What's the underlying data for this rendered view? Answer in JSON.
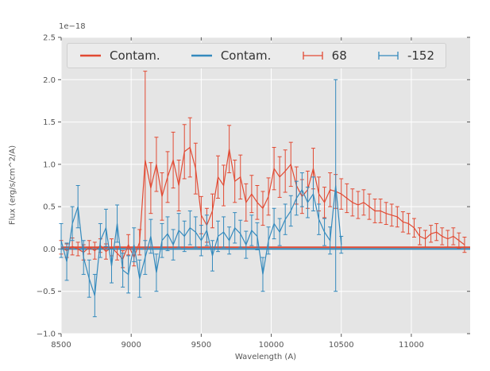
{
  "chart_data": {
    "type": "line",
    "title": "",
    "xlabel": "Wavelength (A)",
    "ylabel": "Flux (erg/s/cm^2/A)",
    "offset_text": "1e−18",
    "xlim": [
      8500,
      11420
    ],
    "ylim": [
      -1.0,
      2.5
    ],
    "grid": true,
    "legend_position": "upper-center-inside",
    "xticks": [
      8500,
      9000,
      9500,
      10000,
      10500,
      11000
    ],
    "xtick_labels": [
      "8500",
      "9000",
      "9500",
      "10000",
      "10500",
      "11000"
    ],
    "yticks": [
      -1.0,
      -0.5,
      0.0,
      0.5,
      1.0,
      1.5,
      2.0,
      2.5
    ],
    "ytick_labels": [
      "−1.0",
      "−0.5",
      "0.0",
      "0.5",
      "1.0",
      "1.5",
      "2.0",
      "2.5"
    ],
    "colors": {
      "plot_bg": "#E5E5E5",
      "grid": "#FFFFFF",
      "tick": "#555555",
      "tick_label": "#555555",
      "red": "#E24A33",
      "blue": "#348ABD"
    },
    "legend": [
      {
        "label": "Contam.",
        "glyph": "line",
        "color": "#E24A33"
      },
      {
        "label": "Contam.",
        "glyph": "line",
        "color": "#348ABD"
      },
      {
        "label": "68",
        "glyph": "errorbar",
        "color": "#E24A33"
      },
      {
        "label": "-152",
        "glyph": "errorbar",
        "color": "#348ABD"
      }
    ],
    "series": [
      {
        "name": "Contam.",
        "type": "line",
        "color": "#E24A33",
        "x": [
          8500,
          11420
        ],
        "y": [
          0.02,
          0.02
        ]
      },
      {
        "name": "Contam.",
        "type": "line",
        "color": "#348ABD",
        "x": [
          8500,
          11420
        ],
        "y": [
          0.0,
          0.0
        ]
      },
      {
        "name": "68",
        "type": "errorbar",
        "color": "#E24A33",
        "x_start": 8500,
        "x_step": 40,
        "y": [
          0.02,
          -0.02,
          0.03,
          0.0,
          -0.04,
          0.02,
          -0.02,
          0.04,
          -0.03,
          0.02,
          -0.05,
          -0.12,
          0.05,
          -0.1,
          0.08,
          1.05,
          0.72,
          1.0,
          0.62,
          0.85,
          1.05,
          0.75,
          1.15,
          1.2,
          0.95,
          0.4,
          0.28,
          0.45,
          0.85,
          0.75,
          1.18,
          0.8,
          0.85,
          0.55,
          0.65,
          0.55,
          0.48,
          0.62,
          0.95,
          0.85,
          0.92,
          1.0,
          0.75,
          0.62,
          0.7,
          0.95,
          0.65,
          0.55,
          0.7,
          0.68,
          0.65,
          0.6,
          0.55,
          0.52,
          0.55,
          0.5,
          0.45,
          0.45,
          0.42,
          0.4,
          0.38,
          0.32,
          0.3,
          0.25,
          0.15,
          0.12,
          0.18,
          0.2,
          0.15,
          0.12,
          0.15,
          0.1,
          0.05
        ],
        "yerr": [
          0.08,
          0.08,
          0.1,
          0.08,
          0.09,
          0.08,
          0.1,
          0.08,
          0.09,
          0.1,
          0.08,
          0.1,
          0.12,
          0.1,
          0.15,
          1.05,
          0.3,
          0.32,
          0.28,
          0.3,
          0.33,
          0.3,
          0.32,
          0.35,
          0.3,
          0.22,
          0.2,
          0.2,
          0.25,
          0.24,
          0.28,
          0.25,
          0.26,
          0.22,
          0.22,
          0.2,
          0.2,
          0.22,
          0.25,
          0.24,
          0.25,
          0.26,
          0.22,
          0.2,
          0.22,
          0.24,
          0.2,
          0.18,
          0.2,
          0.2,
          0.18,
          0.17,
          0.16,
          0.16,
          0.15,
          0.15,
          0.14,
          0.14,
          0.13,
          0.13,
          0.12,
          0.12,
          0.12,
          0.11,
          0.1,
          0.1,
          0.1,
          0.1,
          0.1,
          0.1,
          0.1,
          0.09,
          0.09
        ]
      },
      {
        "name": "-152",
        "type": "errorbar",
        "color": "#348ABD",
        "x_start": 8500,
        "x_step": 40,
        "y": [
          0.1,
          -0.15,
          0.3,
          0.5,
          -0.1,
          -0.35,
          -0.55,
          0.1,
          0.25,
          -0.2,
          0.3,
          -0.25,
          -0.3,
          0.05,
          -0.35,
          -0.1,
          0.15,
          -0.28,
          0.1,
          0.18,
          0.05,
          0.22,
          0.15,
          0.25,
          0.2,
          0.1,
          0.22,
          -0.08,
          0.15,
          0.2,
          0.1,
          0.25,
          0.18,
          0.05,
          0.22,
          0.15,
          -0.3,
          0.1,
          0.3,
          0.2,
          0.35,
          0.45,
          0.6,
          0.7,
          0.55,
          0.65,
          0.35,
          0.2,
          0.1,
          0.75,
          0.05
        ],
        "yerr": [
          0.2,
          0.22,
          0.2,
          0.25,
          0.2,
          0.22,
          0.25,
          0.2,
          0.22,
          0.2,
          0.22,
          0.2,
          0.22,
          0.2,
          0.22,
          0.2,
          0.2,
          0.22,
          0.2,
          0.2,
          0.18,
          0.2,
          0.18,
          0.2,
          0.18,
          0.18,
          0.18,
          0.18,
          0.18,
          0.18,
          0.16,
          0.18,
          0.16,
          0.16,
          0.18,
          0.16,
          0.2,
          0.16,
          0.18,
          0.16,
          0.18,
          0.18,
          0.2,
          0.2,
          0.18,
          0.2,
          0.18,
          0.16,
          0.16,
          1.25,
          0.1
        ]
      }
    ]
  }
}
